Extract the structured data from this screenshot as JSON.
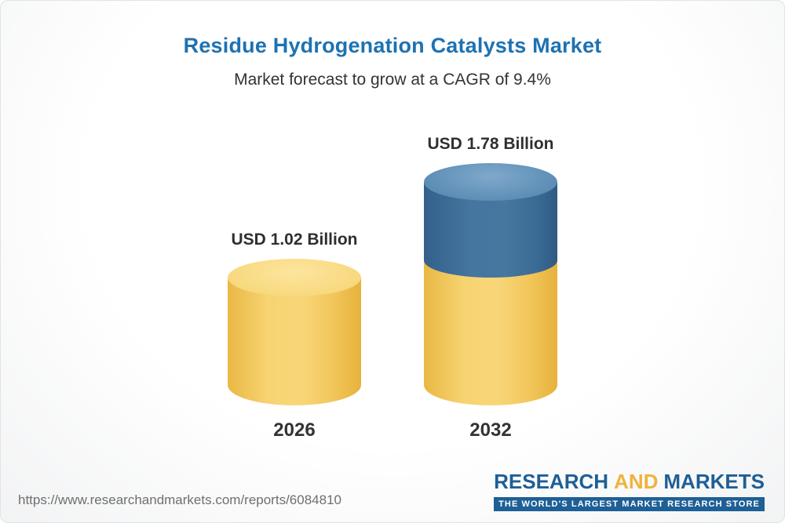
{
  "header": {
    "title": "Residue Hydrogenation Catalysts Market",
    "subtitle": "Market forecast to grow at a CAGR of 9.4%"
  },
  "chart_data": {
    "type": "bar",
    "variant": "3d-cylinder",
    "categories": [
      "2026",
      "2032"
    ],
    "values": [
      1.02,
      1.78
    ],
    "value_labels": [
      "USD 1.02 Billion",
      "USD 1.78 Billion"
    ],
    "unit": "USD Billion",
    "cagr_percent": 9.4,
    "title": "Residue Hydrogenation Catalysts Market",
    "subtitle": "Market forecast to grow at a CAGR of 9.4%",
    "xlabel": "",
    "ylabel": "",
    "ylim": [
      0,
      1.78
    ],
    "grid": false,
    "legend": false,
    "stacking_note": "2032 cylinder: base value shown in yellow, incremental growth over 2026 shown in blue",
    "colors": {
      "base_segment": "#F6CD61",
      "base_segment_top": "#FADC85",
      "growth_segment": "#3E6F9E",
      "growth_segment_top": "#6F9FC4",
      "title_text": "#1D72B2",
      "label_text": "#333333"
    }
  },
  "footer": {
    "url": "https://www.researchandmarkets.com/reports/6084810",
    "logo": {
      "word1": "RESEARCH",
      "word2": "AND",
      "word3": "MARKETS",
      "tagline": "THE WORLD'S LARGEST MARKET RESEARCH STORE",
      "brand_blue": "#1E5F96",
      "brand_gold": "#F0B23E"
    }
  }
}
